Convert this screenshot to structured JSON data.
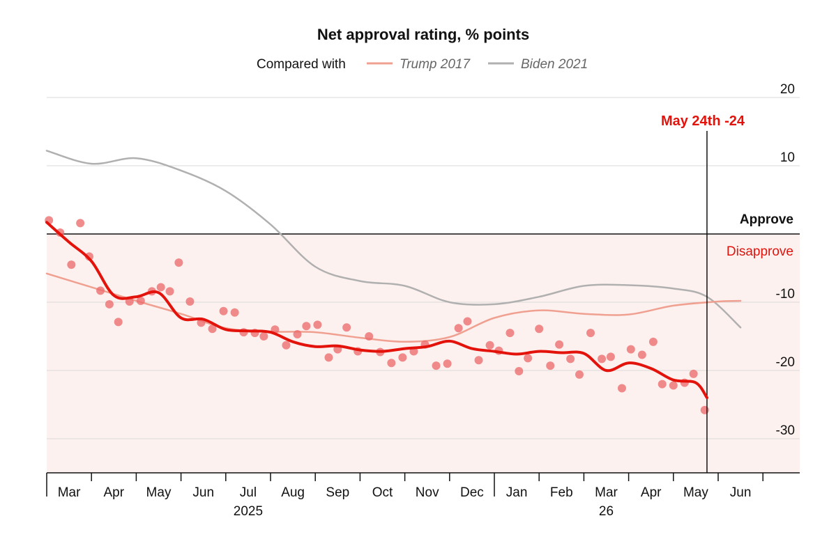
{
  "chart_data": {
    "type": "line",
    "title": "Net approval rating, % points",
    "legend": {
      "prefix": "Compared with",
      "entries": [
        {
          "name": "Trump 2017",
          "color": "#f0a090"
        },
        {
          "name": "Biden 2021",
          "color": "#b0b0b0"
        }
      ],
      "placement": "top"
    },
    "ylim": [
      -35,
      20
    ],
    "yticks": [
      20,
      10,
      -10,
      -20,
      -30
    ],
    "ytick_labels": [
      "20",
      "10",
      "-10",
      "-20",
      "-30"
    ],
    "zones": {
      "approve_label": "Approve",
      "disapprove_label": "Disapprove"
    },
    "xlim": [
      0,
      16.5
    ],
    "x_months": [
      "Mar",
      "Apr",
      "May",
      "Jun",
      "Jul",
      "Aug",
      "Sep",
      "Oct",
      "Nov",
      "Dec",
      "Jan",
      "Feb",
      "Mar",
      "Apr",
      "May",
      "Jun"
    ],
    "year_labels": [
      {
        "text": "2025",
        "month_index": 4.5
      },
      {
        "text": "26",
        "month_index": 12.5
      }
    ],
    "marker": {
      "x": 14.75,
      "label": "May 24th -24"
    },
    "grid": true,
    "series": [
      {
        "name": "Biden 2021",
        "color": "#b0b0b0",
        "points": [
          [
            0,
            12.2
          ],
          [
            1,
            10.3
          ],
          [
            2,
            11.1
          ],
          [
            3,
            9.3
          ],
          [
            4,
            6.3
          ],
          [
            5,
            1.4
          ],
          [
            6,
            -4.8
          ],
          [
            7,
            -6.9
          ],
          [
            8,
            -7.6
          ],
          [
            9,
            -10.0
          ],
          [
            10,
            -10.3
          ],
          [
            11,
            -9.2
          ],
          [
            12,
            -7.6
          ],
          [
            13,
            -7.5
          ],
          [
            14,
            -8.0
          ],
          [
            14.75,
            -9.2
          ],
          [
            15.5,
            -13.7
          ]
        ]
      },
      {
        "name": "Trump 2017",
        "color": "#f0a090",
        "points": [
          [
            0,
            -5.8
          ],
          [
            1,
            -7.8
          ],
          [
            2,
            -9.8
          ],
          [
            3,
            -11.7
          ],
          [
            4,
            -13.8
          ],
          [
            5,
            -14.3
          ],
          [
            6,
            -14.4
          ],
          [
            7,
            -15.2
          ],
          [
            8,
            -15.8
          ],
          [
            9,
            -15.1
          ],
          [
            10,
            -12.3
          ],
          [
            11,
            -11.2
          ],
          [
            12,
            -11.7
          ],
          [
            13,
            -11.8
          ],
          [
            14,
            -10.5
          ],
          [
            15,
            -9.9
          ],
          [
            15.5,
            -9.8
          ]
        ]
      },
      {
        "name": "Trump 2025",
        "color": "#e3120b",
        "points": [
          [
            0,
            1.7
          ],
          [
            0.5,
            -1.2
          ],
          [
            1,
            -4.0
          ],
          [
            1.5,
            -9.0
          ],
          [
            2,
            -9.2
          ],
          [
            2.5,
            -8.6
          ],
          [
            3,
            -12.3
          ],
          [
            3.5,
            -12.5
          ],
          [
            4,
            -14.0
          ],
          [
            4.5,
            -14.2
          ],
          [
            5,
            -14.4
          ],
          [
            5.5,
            -15.8
          ],
          [
            6,
            -16.5
          ],
          [
            6.5,
            -16.4
          ],
          [
            7,
            -17.0
          ],
          [
            7.5,
            -17.2
          ],
          [
            8,
            -16.8
          ],
          [
            8.5,
            -16.5
          ],
          [
            9,
            -15.7
          ],
          [
            9.5,
            -16.8
          ],
          [
            10,
            -17.2
          ],
          [
            10.5,
            -17.6
          ],
          [
            11,
            -17.2
          ],
          [
            11.5,
            -17.4
          ],
          [
            12,
            -17.5
          ],
          [
            12.5,
            -20.0
          ],
          [
            13,
            -18.9
          ],
          [
            13.5,
            -19.7
          ],
          [
            14,
            -21.4
          ],
          [
            14.5,
            -21.8
          ],
          [
            14.75,
            -24.0
          ]
        ]
      }
    ],
    "polls": [
      [
        0.05,
        2.0
      ],
      [
        0.3,
        0.2
      ],
      [
        0.55,
        -4.5
      ],
      [
        0.75,
        1.6
      ],
      [
        0.95,
        -3.3
      ],
      [
        1.2,
        -8.3
      ],
      [
        1.4,
        -10.3
      ],
      [
        1.6,
        -12.9
      ],
      [
        1.85,
        -9.9
      ],
      [
        2.1,
        -9.8
      ],
      [
        2.35,
        -8.4
      ],
      [
        2.55,
        -7.8
      ],
      [
        2.75,
        -8.4
      ],
      [
        2.95,
        -4.2
      ],
      [
        3.2,
        -9.9
      ],
      [
        3.45,
        -13.0
      ],
      [
        3.7,
        -13.9
      ],
      [
        3.95,
        -11.3
      ],
      [
        4.2,
        -11.5
      ],
      [
        4.4,
        -14.4
      ],
      [
        4.65,
        -14.5
      ],
      [
        4.85,
        -15.0
      ],
      [
        5.1,
        -14.0
      ],
      [
        5.35,
        -16.3
      ],
      [
        5.6,
        -14.7
      ],
      [
        5.8,
        -13.5
      ],
      [
        6.05,
        -13.3
      ],
      [
        6.3,
        -18.1
      ],
      [
        6.5,
        -16.9
      ],
      [
        6.7,
        -13.7
      ],
      [
        6.95,
        -17.2
      ],
      [
        7.2,
        -15.0
      ],
      [
        7.45,
        -17.3
      ],
      [
        7.7,
        -18.9
      ],
      [
        7.95,
        -18.1
      ],
      [
        8.2,
        -17.2
      ],
      [
        8.45,
        -16.2
      ],
      [
        8.7,
        -19.3
      ],
      [
        8.95,
        -19.0
      ],
      [
        9.2,
        -13.8
      ],
      [
        9.4,
        -12.8
      ],
      [
        9.65,
        -18.5
      ],
      [
        9.9,
        -16.3
      ],
      [
        10.1,
        -17.1
      ],
      [
        10.35,
        -14.5
      ],
      [
        10.55,
        -20.1
      ],
      [
        10.75,
        -18.2
      ],
      [
        11.0,
        -13.9
      ],
      [
        11.25,
        -19.3
      ],
      [
        11.45,
        -16.2
      ],
      [
        11.7,
        -18.3
      ],
      [
        11.9,
        -20.6
      ],
      [
        12.15,
        -14.5
      ],
      [
        12.4,
        -18.3
      ],
      [
        12.6,
        -18.0
      ],
      [
        12.85,
        -22.6
      ],
      [
        13.05,
        -16.9
      ],
      [
        13.3,
        -17.7
      ],
      [
        13.55,
        -15.8
      ],
      [
        13.75,
        -22.0
      ],
      [
        14.0,
        -22.2
      ],
      [
        14.25,
        -21.8
      ],
      [
        14.45,
        -20.5
      ],
      [
        14.7,
        -25.8
      ]
    ]
  }
}
